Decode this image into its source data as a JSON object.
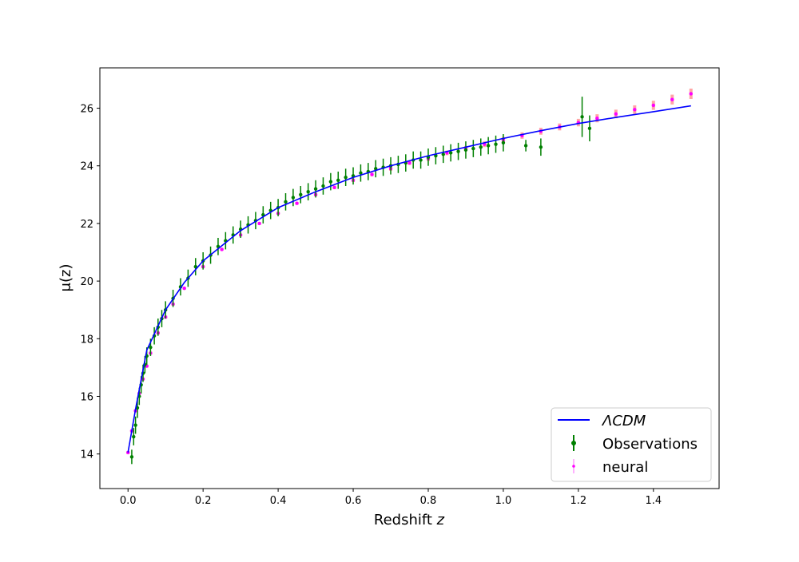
{
  "chart_data": {
    "type": "scatter",
    "title": "",
    "xlabel_prefix": "Redshift ",
    "xlabel_var": "z",
    "ylabel": "μ(z)",
    "xlim": [
      -0.075,
      1.575
    ],
    "ylim": [
      12.8,
      27.4
    ],
    "xticks": [
      0.0,
      0.2,
      0.4,
      0.6,
      0.8,
      1.0,
      1.2,
      1.4
    ],
    "xtick_labels": [
      "0.0",
      "0.2",
      "0.4",
      "0.6",
      "0.8",
      "1.0",
      "1.2",
      "1.4"
    ],
    "yticks": [
      14,
      16,
      18,
      20,
      22,
      24,
      26
    ],
    "ytick_labels": [
      "14",
      "16",
      "18",
      "20",
      "22",
      "24",
      "26"
    ],
    "grid": false,
    "legend_position": "bottom-right",
    "colors": {
      "lcdm": "#0000ff",
      "observations": "#008000",
      "neural": "#ff00ff",
      "neural_error": "#ff8080"
    },
    "series": [
      {
        "name": "ΛCDM",
        "kind": "line",
        "x": [
          0.0,
          0.02,
          0.05,
          0.1,
          0.15,
          0.2,
          0.3,
          0.4,
          0.5,
          0.6,
          0.7,
          0.8,
          0.9,
          1.0,
          1.1,
          1.2,
          1.3,
          1.4,
          1.5
        ],
        "y": [
          14.05,
          15.55,
          17.6,
          19.0,
          19.95,
          20.7,
          21.75,
          22.55,
          23.1,
          23.6,
          24.0,
          24.35,
          24.65,
          24.95,
          25.22,
          25.47,
          25.68,
          25.88,
          26.08
        ]
      },
      {
        "name": "Observations",
        "kind": "errorbar",
        "x": [
          0.01,
          0.015,
          0.02,
          0.025,
          0.03,
          0.035,
          0.04,
          0.045,
          0.05,
          0.06,
          0.07,
          0.08,
          0.09,
          0.1,
          0.12,
          0.14,
          0.16,
          0.18,
          0.2,
          0.22,
          0.24,
          0.26,
          0.28,
          0.3,
          0.32,
          0.34,
          0.36,
          0.38,
          0.4,
          0.42,
          0.44,
          0.46,
          0.48,
          0.5,
          0.52,
          0.54,
          0.56,
          0.58,
          0.6,
          0.62,
          0.64,
          0.66,
          0.68,
          0.7,
          0.72,
          0.74,
          0.76,
          0.78,
          0.8,
          0.82,
          0.84,
          0.86,
          0.88,
          0.9,
          0.92,
          0.94,
          0.96,
          0.98,
          1.0,
          1.06,
          1.1,
          1.21,
          1.23
        ],
        "y": [
          13.9,
          14.6,
          15.0,
          15.6,
          16.0,
          16.4,
          16.8,
          17.1,
          17.4,
          17.7,
          18.1,
          18.4,
          18.7,
          19.0,
          19.4,
          19.8,
          20.1,
          20.5,
          20.7,
          20.9,
          21.2,
          21.4,
          21.6,
          21.8,
          21.95,
          22.1,
          22.3,
          22.45,
          22.55,
          22.75,
          22.9,
          23.0,
          23.1,
          23.2,
          23.3,
          23.45,
          23.5,
          23.6,
          23.65,
          23.75,
          23.8,
          23.9,
          23.95,
          24.0,
          24.05,
          24.1,
          24.2,
          24.2,
          24.3,
          24.35,
          24.4,
          24.45,
          24.5,
          24.55,
          24.6,
          24.65,
          24.7,
          24.75,
          24.8,
          24.7,
          24.65,
          25.7,
          25.3
        ],
        "yerr": [
          0.25,
          0.3,
          0.3,
          0.35,
          0.3,
          0.3,
          0.3,
          0.3,
          0.3,
          0.3,
          0.3,
          0.3,
          0.3,
          0.3,
          0.3,
          0.3,
          0.3,
          0.3,
          0.3,
          0.3,
          0.3,
          0.3,
          0.3,
          0.3,
          0.3,
          0.3,
          0.3,
          0.3,
          0.3,
          0.3,
          0.3,
          0.3,
          0.3,
          0.3,
          0.3,
          0.3,
          0.3,
          0.3,
          0.3,
          0.3,
          0.3,
          0.3,
          0.3,
          0.3,
          0.3,
          0.3,
          0.3,
          0.3,
          0.3,
          0.3,
          0.3,
          0.3,
          0.3,
          0.3,
          0.3,
          0.3,
          0.3,
          0.3,
          0.3,
          0.2,
          0.3,
          0.7,
          0.45
        ]
      },
      {
        "name": "neural",
        "kind": "errorbar",
        "x": [
          0.0,
          0.01,
          0.02,
          0.03,
          0.04,
          0.05,
          0.06,
          0.08,
          0.1,
          0.12,
          0.15,
          0.2,
          0.25,
          0.3,
          0.35,
          0.4,
          0.45,
          0.5,
          0.55,
          0.6,
          0.65,
          0.7,
          0.75,
          0.8,
          0.85,
          0.9,
          0.95,
          1.0,
          1.05,
          1.1,
          1.15,
          1.2,
          1.25,
          1.3,
          1.35,
          1.4,
          1.45,
          1.5
        ],
        "y": [
          14.05,
          14.8,
          15.5,
          16.1,
          16.6,
          17.05,
          17.5,
          18.2,
          18.75,
          19.2,
          19.75,
          20.5,
          21.1,
          21.6,
          22.0,
          22.35,
          22.7,
          23.0,
          23.25,
          23.5,
          23.7,
          23.9,
          24.1,
          24.25,
          24.45,
          24.6,
          24.75,
          24.9,
          25.05,
          25.2,
          25.35,
          25.5,
          25.65,
          25.8,
          25.95,
          26.1,
          26.3,
          26.5
        ],
        "yerr": [
          0.05,
          0.05,
          0.05,
          0.05,
          0.05,
          0.05,
          0.05,
          0.05,
          0.05,
          0.05,
          0.05,
          0.05,
          0.05,
          0.05,
          0.05,
          0.05,
          0.05,
          0.06,
          0.06,
          0.06,
          0.06,
          0.07,
          0.07,
          0.08,
          0.08,
          0.09,
          0.1,
          0.1,
          0.11,
          0.12,
          0.12,
          0.13,
          0.14,
          0.15,
          0.15,
          0.16,
          0.17,
          0.18
        ]
      }
    ]
  }
}
